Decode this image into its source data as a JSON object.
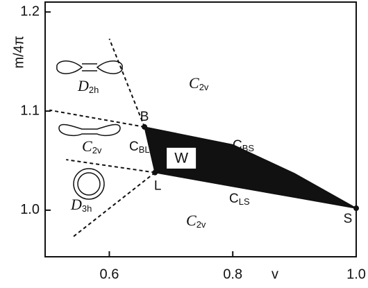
{
  "chart_data": {
    "type": "phase-diagram",
    "x_label": "v",
    "y_label": "m/4π",
    "xlim": [
      0.496,
      1.0
    ],
    "ylim": [
      0.953,
      1.21
    ],
    "xticks": [
      0.6,
      0.8,
      {
        "value": 1,
        "label": "1.0"
      }
    ],
    "yticks": [
      {
        "value": 1,
        "label": "1.0"
      },
      1.1,
      1.2
    ],
    "points": [
      {
        "name": "B",
        "x": 0.657,
        "y": 1.084
      },
      {
        "name": "L",
        "x": 0.674,
        "y": 1.038
      },
      {
        "name": "S",
        "x": 1.0,
        "y": 1.002
      }
    ],
    "region": {
      "name": "W",
      "color": "#111111",
      "x": [
        0.657,
        0.8,
        0.9,
        1.0,
        0.9,
        0.8,
        0.674
      ],
      "y": [
        1.084,
        1.066,
        1.037,
        1.002,
        1.013,
        1.024,
        1.038
      ]
    },
    "boundaries": [
      {
        "x": [
          0.657,
          0.6
        ],
        "y": [
          1.084,
          1.173
        ]
      },
      {
        "x": [
          0.657,
          0.503
        ],
        "y": [
          1.084,
          1.101
        ]
      },
      {
        "x": [
          0.674,
          0.53
        ],
        "y": [
          1.038,
          1.051
        ]
      },
      {
        "x": [
          0.674,
          0.539
        ],
        "y": [
          1.038,
          0.972
        ]
      }
    ],
    "labels": [
      {
        "main": "C",
        "sub": "2v"
      },
      {
        "main": "D",
        "sub": "2h"
      },
      {
        "main": "C",
        "sub": "2v"
      },
      {
        "main": "D",
        "sub": "3h"
      },
      {
        "main": "C",
        "sub": "2v"
      },
      {
        "main": "C",
        "sub": "BL"
      },
      {
        "main": "C",
        "sub": "BS"
      },
      {
        "main": "C",
        "sub": "LS"
      }
    ]
  }
}
